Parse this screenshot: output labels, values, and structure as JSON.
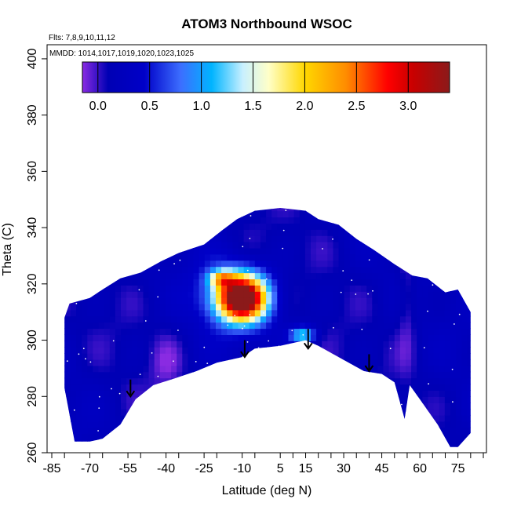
{
  "chart_data": {
    "type": "heatmap",
    "title": "ATOM3 Northbound WSOC",
    "xlabel": "Latitude (deg N)",
    "ylabel": "Theta (C)",
    "xlim": [
      -85,
      85
    ],
    "ylim": [
      260,
      405
    ],
    "x_ticks_labeled": [
      -85,
      -70,
      -55,
      -40,
      -25,
      -10,
      5,
      15,
      30,
      45,
      60,
      75
    ],
    "x_ticks_minor": [
      -80,
      -65,
      -50,
      -35,
      -20,
      -5,
      10,
      20,
      25,
      35,
      40,
      50,
      55,
      65,
      70,
      80,
      85
    ],
    "y_ticks": [
      260,
      280,
      300,
      320,
      340,
      360,
      380,
      400
    ],
    "annotations": {
      "flights": "Flts: 7,8,9,10,11,12",
      "dates": "MMDD: 1014,1017,1019,1020,1023,1025"
    },
    "colorbar": {
      "range": [
        -0.15,
        3.4
      ],
      "ticks": [
        0.0,
        0.5,
        1.0,
        1.5,
        2.0,
        2.5,
        3.0
      ],
      "tick_labels": [
        "0.0",
        "0.5",
        "1.0",
        "1.5",
        "2.0",
        "2.5",
        "3.0"
      ],
      "colors": [
        "#8a2be2",
        "#0000b4",
        "#0000c8",
        "#3c6eff",
        "#00b4ff",
        "#c8f0ff",
        "#ffffc8",
        "#ffd700",
        "#ff8c00",
        "#ff0000",
        "#c80000",
        "#8b1a1a"
      ],
      "color_positions": [
        -0.15,
        0.1,
        0.45,
        0.8,
        1.1,
        1.4,
        1.65,
        2.0,
        2.4,
        2.8,
        3.05,
        3.4
      ]
    },
    "domain_boundary": {
      "top": [
        [
          -80,
          308
        ],
        [
          -78,
          313
        ],
        [
          -70,
          315
        ],
        [
          -65,
          318
        ],
        [
          -58,
          322
        ],
        [
          -50,
          324
        ],
        [
          -42,
          328
        ],
        [
          -35,
          331
        ],
        [
          -25,
          334
        ],
        [
          -18,
          339
        ],
        [
          -12,
          343
        ],
        [
          -5,
          346
        ],
        [
          5,
          347
        ],
        [
          15,
          346
        ],
        [
          20,
          343
        ],
        [
          28,
          341
        ],
        [
          35,
          336
        ],
        [
          42,
          332
        ],
        [
          50,
          327
        ],
        [
          57,
          323
        ],
        [
          63,
          322
        ],
        [
          70,
          317
        ],
        [
          75,
          318
        ],
        [
          80,
          310
        ]
      ],
      "bottom": [
        [
          80,
          267
        ],
        [
          75,
          262
        ],
        [
          72,
          262
        ],
        [
          67,
          270
        ],
        [
          60,
          279
        ],
        [
          56,
          284
        ],
        [
          54,
          272
        ],
        [
          50,
          285
        ],
        [
          45,
          288
        ],
        [
          38,
          289
        ],
        [
          30,
          293
        ],
        [
          20,
          298
        ],
        [
          15,
          300
        ],
        [
          5,
          298
        ],
        [
          -5,
          297
        ],
        [
          -10,
          294
        ],
        [
          -20,
          292
        ],
        [
          -28,
          289
        ],
        [
          -38,
          286
        ],
        [
          -45,
          284
        ],
        [
          -52,
          279
        ],
        [
          -58,
          270
        ],
        [
          -65,
          265
        ],
        [
          -70,
          264
        ],
        [
          -76,
          264
        ],
        [
          -80,
          283
        ]
      ]
    },
    "peak": {
      "lat": -10,
      "theta": 315,
      "value": 3.1
    },
    "secondary_peaks": [
      {
        "lat": 14,
        "theta": 302,
        "value": 1.1
      },
      {
        "lat": -18,
        "theta": 322,
        "value": 1.3
      }
    ],
    "arrows": [
      {
        "lat": -54,
        "theta": 286,
        "tip_theta": 280
      },
      {
        "lat": -9,
        "theta": 300,
        "tip_theta": 294
      },
      {
        "lat": 16,
        "theta": 304,
        "tip_theta": 297
      },
      {
        "lat": 40,
        "theta": 295,
        "tip_theta": 289
      }
    ]
  }
}
